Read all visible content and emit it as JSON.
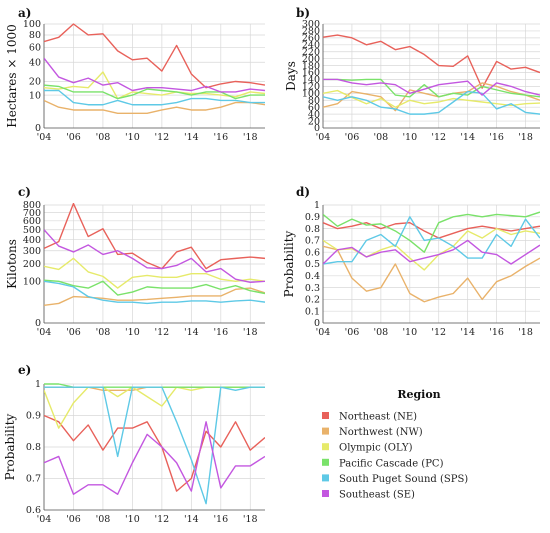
{
  "colors": {
    "NE": "#E8615A",
    "NW": "#E9B26A",
    "OLY": "#E6EA6A",
    "PC": "#7AE26A",
    "SPS": "#5EC9E6",
    "SE": "#C357E0"
  },
  "legend": {
    "title": "Region",
    "entries": [
      {
        "key": "NE",
        "label": "Northeast (NE)"
      },
      {
        "key": "NW",
        "label": "Northwest (NW)"
      },
      {
        "key": "OLY",
        "label": "Olympic (OLY)"
      },
      {
        "key": "PC",
        "label": "Pacific Cascade (PC)"
      },
      {
        "key": "SPS",
        "label": "South Puget Sound (SPS)"
      },
      {
        "key": "SE",
        "label": "Southeast (SE)"
      }
    ]
  },
  "chart_data": [
    {
      "panel": "a)",
      "type": "line",
      "ylabel": "Hectares × 1000",
      "yscale": "sqrt",
      "ylim": [
        0,
        100
      ],
      "yticks": [
        0,
        10,
        20,
        40,
        60,
        80,
        100
      ],
      "x": [
        2004,
        2005,
        2006,
        2007,
        2008,
        2009,
        2010,
        2011,
        2012,
        2013,
        2014,
        2015,
        2016,
        2017,
        2018,
        2019
      ],
      "xticklabels": [
        "'04",
        "'06",
        "'08",
        "'10",
        "'12",
        "'14",
        "'16",
        "'18"
      ],
      "series": [
        {
          "key": "NE",
          "values": [
            69,
            76,
            100,
            80,
            82,
            55,
            43,
            45,
            30,
            63,
            27,
            15,
            18,
            20,
            19,
            17
          ]
        },
        {
          "key": "NW",
          "values": [
            7,
            4,
            3,
            3,
            3,
            2,
            2,
            2,
            3,
            4,
            3,
            3,
            4,
            6,
            6,
            5
          ]
        },
        {
          "key": "OLY",
          "values": [
            15,
            14,
            16,
            15,
            29,
            8,
            12,
            11,
            10,
            12,
            11,
            11,
            10,
            9,
            12,
            11
          ]
        },
        {
          "key": "PC",
          "values": [
            17,
            16,
            12,
            12,
            12,
            8,
            10,
            14,
            13,
            12,
            10,
            12,
            12,
            8,
            10,
            10
          ]
        },
        {
          "key": "SPS",
          "values": [
            13,
            13,
            6,
            5,
            5,
            7,
            5,
            5,
            5,
            6,
            8,
            8,
            7,
            7,
            6,
            6
          ]
        },
        {
          "key": "SE",
          "values": [
            45,
            24,
            19,
            23,
            17,
            19,
            13,
            15,
            15,
            14,
            13,
            16,
            12,
            12,
            14,
            13
          ]
        }
      ]
    },
    {
      "panel": "b)",
      "type": "line",
      "ylabel": "Days",
      "ylim": [
        0,
        300
      ],
      "yticks": [
        0,
        20,
        40,
        60,
        80,
        100,
        120,
        140,
        160,
        180,
        200,
        220,
        240,
        260,
        280,
        300
      ],
      "x": [
        2004,
        2005,
        2006,
        2007,
        2008,
        2009,
        2010,
        2011,
        2012,
        2013,
        2014,
        2015,
        2016,
        2017,
        2018,
        2019
      ],
      "xticklabels": [
        "'04",
        "'06",
        "'08",
        "'10",
        "'12",
        "'14",
        "'16",
        "'18"
      ],
      "series": [
        {
          "key": "NE",
          "values": [
            262,
            268,
            260,
            240,
            250,
            226,
            235,
            212,
            180,
            178,
            208,
            115,
            192,
            170,
            175,
            160
          ]
        },
        {
          "key": "NW",
          "values": [
            60,
            70,
            105,
            98,
            90,
            50,
            110,
            100,
            90,
            100,
            105,
            130,
            120,
            105,
            95,
            80
          ]
        },
        {
          "key": "OLY",
          "values": [
            100,
            108,
            88,
            70,
            85,
            60,
            80,
            70,
            75,
            85,
            80,
            75,
            70,
            65,
            70,
            72
          ]
        },
        {
          "key": "PC",
          "values": [
            140,
            140,
            138,
            140,
            140,
            95,
            90,
            125,
            90,
            100,
            95,
            120,
            110,
            100,
            95,
            90
          ]
        },
        {
          "key": "SPS",
          "values": [
            90,
            80,
            90,
            80,
            60,
            55,
            40,
            40,
            45,
            75,
            105,
            100,
            55,
            70,
            45,
            40
          ]
        },
        {
          "key": "SE",
          "values": [
            140,
            140,
            130,
            125,
            130,
            125,
            100,
            112,
            125,
            130,
            135,
            95,
            130,
            120,
            105,
            95
          ]
        }
      ]
    },
    {
      "panel": "c)",
      "type": "line",
      "ylabel": "Kilotons",
      "yscale": "sqrt",
      "ylim": [
        0,
        800
      ],
      "yticks": [
        0,
        100,
        200,
        300,
        400,
        500,
        600,
        700,
        800
      ],
      "x": [
        2004,
        2005,
        2006,
        2007,
        2008,
        2009,
        2010,
        2011,
        2012,
        2013,
        2014,
        2015,
        2016,
        2017,
        2018,
        2019
      ],
      "xticklabels": [
        "'04",
        "'06",
        "'08",
        "'10",
        "'12",
        "'14",
        "'16",
        "'18"
      ],
      "series": [
        {
          "key": "NE",
          "values": [
            320,
            380,
            820,
            430,
            510,
            270,
            280,
            210,
            170,
            290,
            330,
            170,
            230,
            240,
            250,
            240
          ]
        },
        {
          "key": "NW",
          "values": [
            18,
            22,
            40,
            38,
            35,
            30,
            30,
            32,
            35,
            38,
            42,
            42,
            42,
            65,
            70,
            52
          ]
        },
        {
          "key": "OLY",
          "values": [
            185,
            165,
            240,
            150,
            125,
            70,
            120,
            130,
            120,
            120,
            140,
            140,
            110,
            100,
            110,
            100
          ]
        },
        {
          "key": "PC",
          "values": [
            105,
            100,
            80,
            70,
            100,
            45,
            55,
            75,
            70,
            70,
            70,
            85,
            65,
            80,
            60,
            50
          ]
        },
        {
          "key": "SPS",
          "values": [
            100,
            90,
            75,
            40,
            30,
            25,
            25,
            22,
            25,
            25,
            28,
            28,
            25,
            28,
            30,
            25
          ]
        },
        {
          "key": "SE",
          "values": [
            500,
            340,
            290,
            350,
            270,
            300,
            240,
            175,
            170,
            190,
            240,
            150,
            170,
            110,
            95,
            100
          ]
        }
      ]
    },
    {
      "panel": "d)",
      "type": "line",
      "ylabel": "Probability",
      "ylim": [
        0,
        1
      ],
      "yticks": [
        0,
        0.1,
        0.2,
        0.3,
        0.4,
        0.5,
        0.6,
        0.7,
        0.8,
        0.9,
        1
      ],
      "ytickLabels": [
        "0",
        "0.1",
        "0.2",
        "0.3",
        "0.4",
        "0.5",
        "0.6",
        "0.7",
        "0.8",
        "0.9",
        "1"
      ],
      "x": [
        2004,
        2005,
        2006,
        2007,
        2008,
        2009,
        2010,
        2011,
        2012,
        2013,
        2014,
        2015,
        2016,
        2017,
        2018,
        2019
      ],
      "xticklabels": [
        "'04",
        "'06",
        "'08",
        "'10",
        "'12",
        "'14",
        "'16",
        "'18"
      ],
      "series": [
        {
          "key": "NE",
          "values": [
            0.85,
            0.8,
            0.82,
            0.85,
            0.8,
            0.84,
            0.85,
            0.78,
            0.72,
            0.76,
            0.8,
            0.82,
            0.8,
            0.78,
            0.8,
            0.82
          ]
        },
        {
          "key": "NW",
          "values": [
            0.65,
            0.62,
            0.38,
            0.27,
            0.3,
            0.5,
            0.25,
            0.18,
            0.22,
            0.25,
            0.38,
            0.2,
            0.35,
            0.4,
            0.48,
            0.55
          ]
        },
        {
          "key": "OLY",
          "values": [
            0.7,
            0.62,
            0.63,
            0.56,
            0.62,
            0.66,
            0.55,
            0.45,
            0.58,
            0.65,
            0.78,
            0.72,
            0.8,
            0.75,
            0.78,
            0.76
          ]
        },
        {
          "key": "PC",
          "values": [
            0.92,
            0.82,
            0.88,
            0.83,
            0.84,
            0.78,
            0.7,
            0.6,
            0.85,
            0.9,
            0.92,
            0.9,
            0.92,
            0.91,
            0.9,
            0.94
          ]
        },
        {
          "key": "SPS",
          "values": [
            0.5,
            0.52,
            0.52,
            0.7,
            0.75,
            0.65,
            0.9,
            0.7,
            0.72,
            0.65,
            0.55,
            0.55,
            0.75,
            0.65,
            0.88,
            0.72
          ]
        },
        {
          "key": "SE",
          "values": [
            0.5,
            0.62,
            0.64,
            0.56,
            0.6,
            0.62,
            0.52,
            0.55,
            0.58,
            0.62,
            0.7,
            0.6,
            0.58,
            0.5,
            0.58,
            0.66
          ]
        }
      ]
    },
    {
      "panel": "e)",
      "type": "line",
      "ylabel": "Probability",
      "ylim": [
        0.6,
        1
      ],
      "yticks": [
        0.6,
        0.7,
        0.8,
        0.9,
        1
      ],
      "ytickLabels": [
        "0.6",
        "0.7",
        "0.8",
        "0.9",
        "1"
      ],
      "x": [
        2004,
        2005,
        2006,
        2007,
        2008,
        2009,
        2010,
        2011,
        2012,
        2013,
        2014,
        2015,
        2016,
        2017,
        2018,
        2019
      ],
      "xticklabels": [
        "'04",
        "'06",
        "'08",
        "'10",
        "'12",
        "'14",
        "'16",
        "'18"
      ],
      "series": [
        {
          "key": "NE",
          "values": [
            0.9,
            0.88,
            0.82,
            0.87,
            0.79,
            0.86,
            0.86,
            0.88,
            0.8,
            0.66,
            0.7,
            0.85,
            0.8,
            0.88,
            0.79,
            0.83
          ]
        },
        {
          "key": "NW",
          "values": [
            0.99,
            0.99,
            0.99,
            0.99,
            0.98,
            0.98,
            0.98,
            0.99,
            0.99,
            0.99,
            0.99,
            0.99,
            0.99,
            0.99,
            0.99,
            0.99
          ]
        },
        {
          "key": "OLY",
          "values": [
            0.98,
            0.86,
            0.94,
            0.99,
            0.99,
            0.96,
            0.99,
            0.96,
            0.93,
            0.99,
            0.98,
            0.99,
            0.99,
            0.99,
            0.99,
            0.99
          ]
        },
        {
          "key": "PC",
          "values": [
            1.0,
            1.0,
            0.99,
            0.99,
            0.99,
            0.99,
            0.99,
            0.99,
            0.99,
            0.99,
            0.99,
            0.99,
            0.99,
            0.99,
            0.99,
            0.99
          ]
        },
        {
          "key": "SPS",
          "values": [
            0.99,
            0.99,
            0.99,
            0.99,
            0.99,
            0.77,
            0.99,
            0.99,
            0.99,
            0.88,
            0.76,
            0.62,
            0.99,
            0.98,
            0.99,
            0.99
          ]
        },
        {
          "key": "SE",
          "values": [
            0.75,
            0.77,
            0.65,
            0.68,
            0.68,
            0.65,
            0.75,
            0.84,
            0.8,
            0.75,
            0.66,
            0.88,
            0.67,
            0.74,
            0.74,
            0.77
          ]
        }
      ]
    }
  ]
}
